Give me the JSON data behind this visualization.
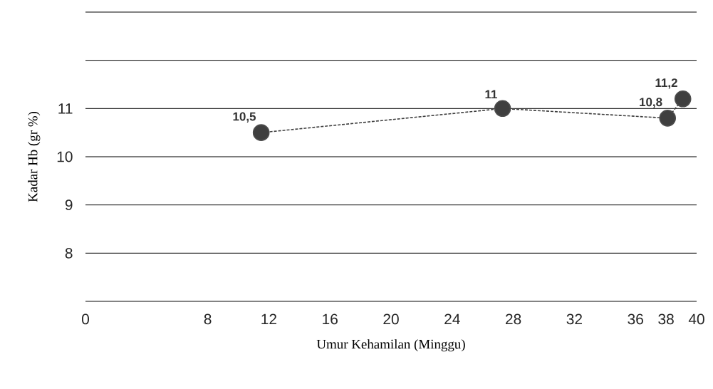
{
  "chart_data": {
    "type": "line",
    "xlabel": "Umur Kehamilan (Minggu)",
    "ylabel": "Kadar Hb (gr %)",
    "x": [
      11.5,
      27.3,
      38.1,
      39.1
    ],
    "values": [
      10.5,
      11,
      10.8,
      11.2
    ],
    "value_labels": [
      "10,5",
      "11",
      "10,8",
      "11,2"
    ],
    "color": "#3f3f3f",
    "marker": "circle",
    "line_style": "dashed",
    "grid": "y",
    "xlim": [
      0,
      40
    ],
    "ylim": [
      7,
      13
    ],
    "xticks": [
      0,
      8,
      12,
      16,
      20,
      24,
      28,
      32,
      36,
      38,
      40
    ],
    "yticks": [
      {
        "value": 7,
        "label": null
      },
      8,
      9,
      10,
      11,
      {
        "value": 12,
        "label": null
      },
      {
        "value": 13,
        "label": null
      }
    ]
  }
}
